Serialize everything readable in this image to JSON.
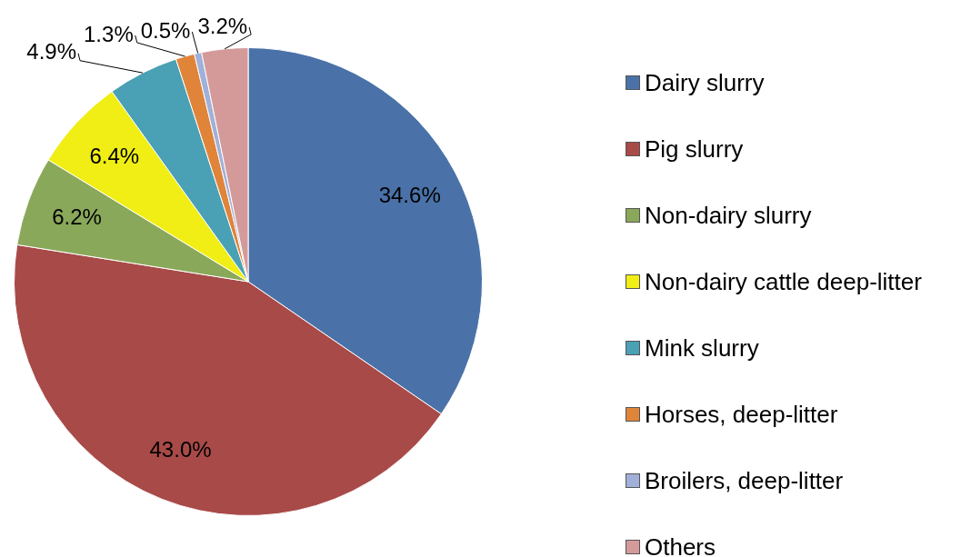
{
  "chart_data": {
    "type": "pie",
    "categories": [
      "Dairy slurry",
      "Pig slurry",
      "Non-dairy slurry",
      "Non-dairy cattle deep-litter",
      "Mink slurry",
      "Horses, deep-litter",
      "Broilers, deep-litter",
      "Others"
    ],
    "values": [
      34.6,
      43.0,
      6.2,
      6.4,
      4.9,
      1.3,
      0.5,
      3.2
    ],
    "value_labels": [
      "34.6%",
      "43.0%",
      "6.2%",
      "6.4%",
      "4.9%",
      "1.3%",
      "0.5%",
      "3.2%"
    ],
    "colors": [
      "#4a72a8",
      "#a84a48",
      "#8aa85a",
      "#f0ee14",
      "#4aa0b4",
      "#e0843a",
      "#a0b0d8",
      "#d49a9a"
    ],
    "legend": "right"
  }
}
